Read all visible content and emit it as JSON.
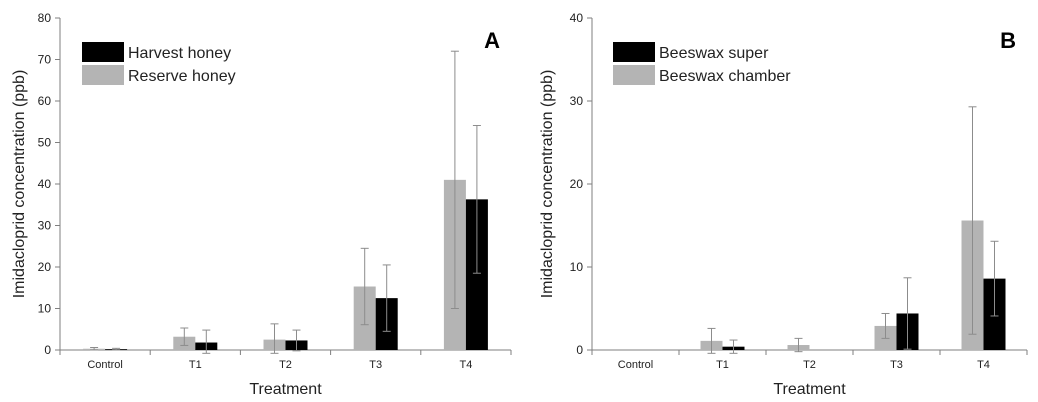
{
  "chart_data": [
    {
      "type": "bar",
      "panel_label": "A",
      "xlabel": "Treatment",
      "ylabel": "Imidacloprid concentration (ppb)",
      "ylim": [
        0,
        80
      ],
      "yticks": [
        0,
        10,
        20,
        30,
        40,
        50,
        60,
        70,
        80
      ],
      "categories": [
        "Control",
        "T1",
        "T2",
        "T3",
        "T4"
      ],
      "legend_position": "top-left",
      "series": [
        {
          "name": "Reserve honey",
          "color": "#b4b4b4",
          "values": [
            0.3,
            3.2,
            2.5,
            15.3,
            41.0
          ],
          "error": [
            0.3,
            2.1,
            3.8,
            9.2,
            31.0
          ]
        },
        {
          "name": "Harvest honey",
          "color": "#000000",
          "values": [
            0.2,
            1.8,
            2.3,
            12.5,
            36.3
          ],
          "error": [
            0.2,
            3.0,
            2.5,
            8.0,
            17.8
          ]
        }
      ],
      "legend_order": [
        1,
        0
      ]
    },
    {
      "type": "bar",
      "panel_label": "B",
      "xlabel": "Treatment",
      "ylabel": "Imidacloprid concentration (ppb)",
      "ylim": [
        0,
        40
      ],
      "yticks": [
        0,
        10,
        20,
        30,
        40
      ],
      "categories": [
        "Control",
        "T1",
        "T2",
        "T3",
        "T4"
      ],
      "legend_position": "top-left",
      "series": [
        {
          "name": "Beeswax chamber",
          "color": "#b4b4b4",
          "values": [
            0,
            1.1,
            0.6,
            2.9,
            15.6
          ],
          "error": [
            0,
            1.5,
            0.8,
            1.5,
            13.7
          ]
        },
        {
          "name": "Beeswax super",
          "color": "#000000",
          "values": [
            0,
            0.4,
            0,
            4.4,
            8.6
          ],
          "error": [
            0,
            0.8,
            0,
            4.3,
            4.5
          ]
        }
      ],
      "legend_order": [
        1,
        0
      ]
    }
  ]
}
